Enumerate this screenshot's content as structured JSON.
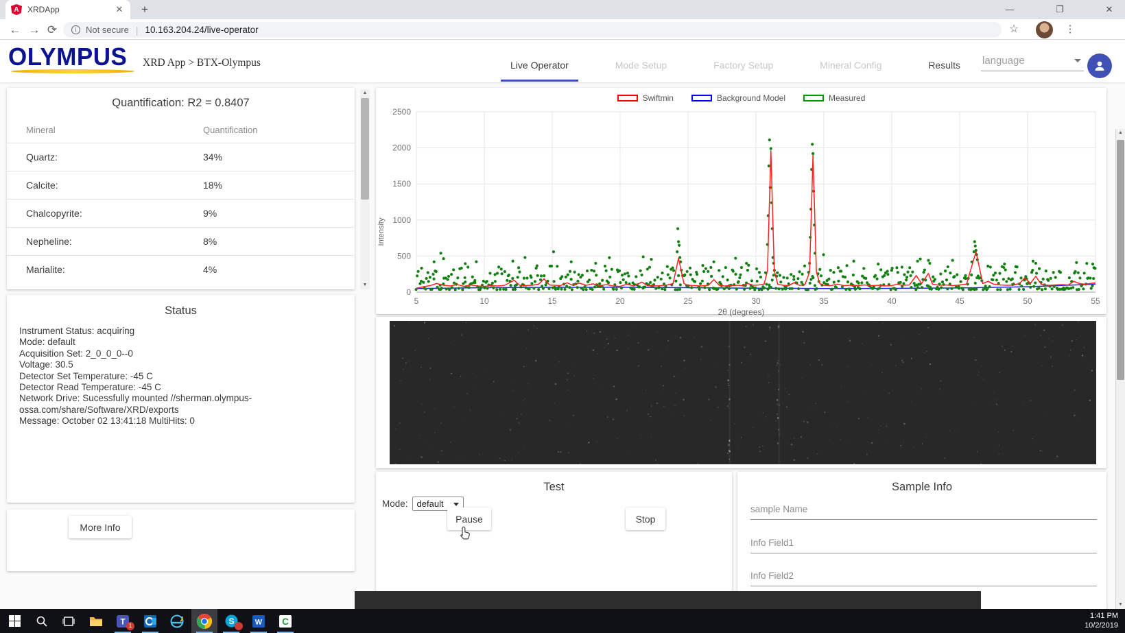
{
  "browser": {
    "tab_title": "XRDApp",
    "tab_close": "✕",
    "new_tab": "+",
    "favicon_letter": "A",
    "back": "←",
    "forward": "→",
    "reload": "⟳",
    "info_glyph": "i",
    "security_label": "Not secure",
    "divider": "|",
    "url": "10.163.204.24/live-operator",
    "star": "☆",
    "menu_dots": "⋮",
    "minimize": "—",
    "maximize": "❐",
    "close": "✕"
  },
  "header": {
    "logo": "OLYMPUS",
    "breadcrumb": "XRD App > BTX-Olympus",
    "nav": [
      {
        "label": "Live Operator",
        "state": "active"
      },
      {
        "label": "Mode Setup",
        "state": "disabled"
      },
      {
        "label": "Factory Setup",
        "state": "disabled"
      },
      {
        "label": "Mineral Config",
        "state": "disabled"
      },
      {
        "label": "Results",
        "state": "normal"
      }
    ],
    "language_label": "language",
    "accent_color": "#3f51b5"
  },
  "quantification": {
    "title": "Quantification: R2 = 0.8407",
    "columns": [
      "Mineral",
      "Quantification"
    ],
    "rows": [
      {
        "mineral": "Quartz:",
        "value": "34%"
      },
      {
        "mineral": "Calcite:",
        "value": "18%"
      },
      {
        "mineral": "Chalcopyrite:",
        "value": "9%"
      },
      {
        "mineral": "Nepheline:",
        "value": "8%"
      },
      {
        "mineral": "Marialite:",
        "value": "4%"
      }
    ]
  },
  "status": {
    "title": "Status",
    "lines": [
      "Instrument Status: acquiring",
      "Mode: default",
      "Acquisition Set: 2_0_0_0--0",
      "Voltage: 30.5",
      "Detector Set Temperature: -45 C",
      "Detector Read Temperature: -45 C",
      "Network Drive: Sucessfully mounted //sherman.olympus-",
      "ossa.com/share/Software/XRD/exports",
      "Message: October 02 13:41:18 MultiHits: 0"
    ]
  },
  "more_info_label": "More Info",
  "chart_data": {
    "type": "scatter",
    "title": "",
    "xlabel": "2θ (degrees)",
    "ylabel": "Intensity",
    "xlim": [
      5,
      55
    ],
    "ylim": [
      0,
      2500
    ],
    "xticks": [
      5,
      10,
      15,
      20,
      25,
      30,
      35,
      40,
      45,
      50,
      55
    ],
    "yticks": [
      0,
      500,
      1000,
      1500,
      2000,
      2500
    ],
    "grid": true,
    "legend_position": "top",
    "legend": [
      {
        "name": "Swiftmin",
        "color": "#ff0000"
      },
      {
        "name": "Background Model",
        "color": "#0000ff"
      },
      {
        "name": "Measured",
        "color": "#009900"
      }
    ],
    "series": [
      {
        "name": "Background Model",
        "type": "line",
        "color": "#2222ee",
        "points": [
          [
            5,
            50
          ],
          [
            10,
            62
          ],
          [
            15,
            66
          ],
          [
            20,
            68
          ],
          [
            25,
            62
          ],
          [
            30,
            55
          ],
          [
            35,
            50
          ],
          [
            40,
            52
          ],
          [
            45,
            58
          ],
          [
            50,
            75
          ],
          [
            55,
            110
          ]
        ]
      },
      {
        "name": "Swiftmin",
        "type": "line",
        "color": "#ff2020",
        "points": [
          [
            5,
            55
          ],
          [
            5.5,
            75
          ],
          [
            6,
            90
          ],
          [
            6.5,
            120
          ],
          [
            7,
            95
          ],
          [
            7.5,
            85
          ],
          [
            8,
            105
          ],
          [
            8.5,
            80
          ],
          [
            9,
            100
          ],
          [
            9.5,
            85
          ],
          [
            10,
            80
          ],
          [
            10.5,
            90
          ],
          [
            11,
            85
          ],
          [
            11.5,
            95
          ],
          [
            12.2,
            165
          ],
          [
            12.6,
            95
          ],
          [
            13,
            90
          ],
          [
            13.5,
            95
          ],
          [
            14,
            110
          ],
          [
            14.4,
            185
          ],
          [
            14.8,
            100
          ],
          [
            15.2,
            95
          ],
          [
            15.6,
            90
          ],
          [
            16.1,
            130
          ],
          [
            16.5,
            95
          ],
          [
            17,
            125
          ],
          [
            17.5,
            95
          ],
          [
            18,
            115
          ],
          [
            18.5,
            90
          ],
          [
            19,
            105
          ],
          [
            19.5,
            85
          ],
          [
            20,
            80
          ],
          [
            20.5,
            110
          ],
          [
            21,
            85
          ],
          [
            21.6,
            140
          ],
          [
            22,
            90
          ],
          [
            22.5,
            85
          ],
          [
            23,
            90
          ],
          [
            23.5,
            100
          ],
          [
            23.9,
            120
          ],
          [
            24.3,
            470
          ],
          [
            24.7,
            120
          ],
          [
            25,
            95
          ],
          [
            25.5,
            90
          ],
          [
            26,
            85
          ],
          [
            26.5,
            95
          ],
          [
            26.9,
            175
          ],
          [
            27.3,
            95
          ],
          [
            27.7,
            85
          ],
          [
            28.2,
            90
          ],
          [
            28.6,
            95
          ],
          [
            29,
            90
          ],
          [
            29.4,
            120
          ],
          [
            29.8,
            95
          ],
          [
            30.2,
            100
          ],
          [
            30.6,
            110
          ],
          [
            30.85,
            300
          ],
          [
            31.1,
            1960
          ],
          [
            31.35,
            300
          ],
          [
            31.6,
            110
          ],
          [
            32,
            95
          ],
          [
            32.4,
            90
          ],
          [
            32.8,
            130
          ],
          [
            33.2,
            95
          ],
          [
            33.6,
            100
          ],
          [
            33.95,
            280
          ],
          [
            34.2,
            1900
          ],
          [
            34.45,
            280
          ],
          [
            34.7,
            120
          ],
          [
            35,
            95
          ],
          [
            35.5,
            90
          ],
          [
            36,
            110
          ],
          [
            36.5,
            90
          ],
          [
            37,
            95
          ],
          [
            37.5,
            90
          ],
          [
            38,
            100
          ],
          [
            38.5,
            90
          ],
          [
            39,
            95
          ],
          [
            39.5,
            85
          ],
          [
            40,
            90
          ],
          [
            40.4,
            110
          ],
          [
            40.8,
            95
          ],
          [
            41.3,
            100
          ],
          [
            41.8,
            230
          ],
          [
            42.2,
            120
          ],
          [
            42.7,
            260
          ],
          [
            43,
            110
          ],
          [
            43.5,
            95
          ],
          [
            44,
            100
          ],
          [
            44.5,
            90
          ],
          [
            45,
            100
          ],
          [
            45.5,
            110
          ],
          [
            46.2,
            560
          ],
          [
            46.7,
            120
          ],
          [
            47.1,
            150
          ],
          [
            47.5,
            110
          ],
          [
            48,
            100
          ],
          [
            48.5,
            95
          ],
          [
            49,
            100
          ],
          [
            49.4,
            120
          ],
          [
            49.8,
            200
          ],
          [
            50.2,
            120
          ],
          [
            50.6,
            220
          ],
          [
            51,
            110
          ],
          [
            51.5,
            95
          ],
          [
            52,
            100
          ],
          [
            52.5,
            105
          ],
          [
            53,
            100
          ],
          [
            53.4,
            150
          ],
          [
            53.8,
            120
          ],
          [
            54.2,
            110
          ],
          [
            54.6,
            120
          ],
          [
            55,
            130
          ]
        ]
      },
      {
        "name": "Measured",
        "type": "scatter",
        "color": "#118011",
        "noise": {
          "seed": 42,
          "count": 610,
          "x_range": [
            5,
            55
          ],
          "y_base": 35,
          "y_spread": 330,
          "outlier_chance": 0.03
        },
        "feature_points": [
          [
            6.3,
            420
          ],
          [
            6.8,
            540
          ],
          [
            7.0,
            465
          ],
          [
            8.6,
            395
          ],
          [
            12.1,
            430
          ],
          [
            13.0,
            480
          ],
          [
            15.1,
            560
          ],
          [
            16.4,
            420
          ],
          [
            18.2,
            400
          ],
          [
            21.7,
            490
          ],
          [
            22.3,
            455
          ],
          [
            24.2,
            560
          ],
          [
            24.25,
            880
          ],
          [
            24.3,
            700
          ],
          [
            24.35,
            650
          ],
          [
            24.4,
            480
          ],
          [
            24.45,
            420
          ],
          [
            26.9,
            420
          ],
          [
            28.5,
            470
          ],
          [
            29.3,
            400
          ],
          [
            30.85,
            660
          ],
          [
            30.9,
            1060
          ],
          [
            30.95,
            1750
          ],
          [
            31.0,
            2110
          ],
          [
            31.05,
            1450
          ],
          [
            31.1,
            1990
          ],
          [
            31.15,
            1240
          ],
          [
            31.2,
            880
          ],
          [
            31.25,
            480
          ],
          [
            31.3,
            400
          ],
          [
            33.95,
            400
          ],
          [
            34.0,
            760
          ],
          [
            34.05,
            1150
          ],
          [
            34.1,
            1700
          ],
          [
            34.15,
            2050
          ],
          [
            34.2,
            1920
          ],
          [
            34.25,
            1400
          ],
          [
            34.3,
            930
          ],
          [
            34.35,
            540
          ],
          [
            37.2,
            430
          ],
          [
            39.0,
            390
          ],
          [
            41.9,
            430
          ],
          [
            42.1,
            460
          ],
          [
            42.7,
            440
          ],
          [
            42.8,
            400
          ],
          [
            45.9,
            420
          ],
          [
            46.05,
            560
          ],
          [
            46.1,
            700
          ],
          [
            46.15,
            640
          ],
          [
            46.2,
            580
          ],
          [
            46.25,
            520
          ],
          [
            46.3,
            450
          ],
          [
            48.3,
            390
          ],
          [
            50.4,
            430
          ],
          [
            50.6,
            400
          ],
          [
            53.6,
            410
          ],
          [
            54.8,
            390
          ]
        ]
      }
    ]
  },
  "detector_image": {
    "description": "dark detector strip with faint speckle noise and two faint vertical diffraction streaks",
    "streak_positions_pct": [
      48,
      55
    ]
  },
  "test_panel": {
    "title": "Test",
    "mode_label": "Mode:",
    "mode_value": "default",
    "pause_label": "Pause",
    "stop_label": "Stop"
  },
  "sample_info": {
    "title": "Sample Info",
    "fields": [
      {
        "placeholder": "sample Name",
        "value": ""
      },
      {
        "placeholder": "Info Field1",
        "value": ""
      },
      {
        "placeholder": "Info Field2",
        "value": ""
      }
    ]
  },
  "taskbar": {
    "time": "1:41 PM",
    "date": "10/2/2019",
    "icons": [
      {
        "name": "start",
        "running": false
      },
      {
        "name": "search",
        "running": false
      },
      {
        "name": "task-view",
        "running": false
      },
      {
        "name": "file-explorer",
        "running": false
      },
      {
        "name": "teams",
        "running": true,
        "badge": "1"
      },
      {
        "name": "outlook",
        "running": true
      },
      {
        "name": "internet-explorer",
        "running": false
      },
      {
        "name": "chrome",
        "running": true,
        "active": true
      },
      {
        "name": "skype",
        "running": true,
        "badge": " "
      },
      {
        "name": "word",
        "running": true
      },
      {
        "name": "camtasia",
        "running": true
      }
    ]
  }
}
